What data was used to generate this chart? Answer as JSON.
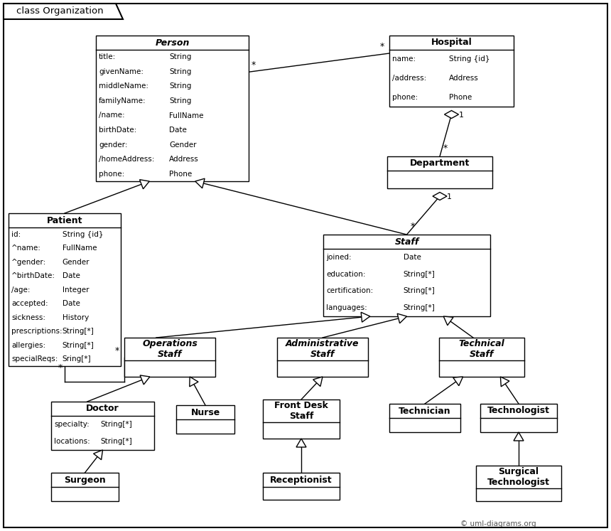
{
  "title": "class Organization",
  "bg_color": "#ffffff",
  "positions": {
    "Person": [
      135,
      50,
      215,
      205
    ],
    "Hospital": [
      548,
      50,
      175,
      100
    ],
    "Department": [
      545,
      220,
      148,
      45
    ],
    "Staff": [
      455,
      330,
      235,
      115
    ],
    "Patient": [
      12,
      300,
      158,
      215
    ],
    "OperationsStaff": [
      175,
      475,
      128,
      55
    ],
    "AdministrativeStaff": [
      390,
      475,
      128,
      55
    ],
    "TechnicalStaff": [
      618,
      475,
      120,
      55
    ],
    "Doctor": [
      72,
      565,
      145,
      68
    ],
    "Nurse": [
      248,
      570,
      82,
      40
    ],
    "FrontDeskStaff": [
      370,
      562,
      108,
      55
    ],
    "Technician": [
      548,
      568,
      100,
      40
    ],
    "Technologist": [
      676,
      568,
      108,
      40
    ],
    "Surgeon": [
      72,
      665,
      95,
      40
    ],
    "Receptionist": [
      370,
      665,
      108,
      38
    ],
    "SurgicalTechnologist": [
      670,
      655,
      120,
      50
    ]
  },
  "attrs_data": {
    "Person": [
      [
        "title:",
        "String"
      ],
      [
        "givenName:",
        "String"
      ],
      [
        "middleName:",
        "String"
      ],
      [
        "familyName:",
        "String"
      ],
      [
        "/name:",
        "FullName"
      ],
      [
        "birthDate:",
        "Date"
      ],
      [
        "gender:",
        "Gender"
      ],
      [
        "/homeAddress:",
        "Address"
      ],
      [
        "phone:",
        "Phone"
      ]
    ],
    "Hospital": [
      [
        "name:",
        "String {id}"
      ],
      [
        "/address:",
        "Address"
      ],
      [
        "phone:",
        "Phone"
      ]
    ],
    "Department": [],
    "Staff": [
      [
        "joined:",
        "Date"
      ],
      [
        "education:",
        "String[*]"
      ],
      [
        "certification:",
        "String[*]"
      ],
      [
        "languages:",
        "String[*]"
      ]
    ],
    "Patient": [
      [
        "id:",
        "String {id}"
      ],
      [
        "^name:",
        "FullName"
      ],
      [
        "^gender:",
        "Gender"
      ],
      [
        "^birthDate:",
        "Date"
      ],
      [
        "/age:",
        "Integer"
      ],
      [
        "accepted:",
        "Date"
      ],
      [
        "sickness:",
        "History"
      ],
      [
        "prescriptions:",
        "String[*]"
      ],
      [
        "allergies:",
        "String[*]"
      ],
      [
        "specialReqs:",
        "Sring[*]"
      ]
    ],
    "OperationsStaff": [],
    "AdministrativeStaff": [],
    "TechnicalStaff": [],
    "Doctor": [
      [
        "specialty:",
        "String[*]"
      ],
      [
        "locations:",
        "String[*]"
      ]
    ],
    "Nurse": [],
    "FrontDeskStaff": [],
    "Technician": [],
    "Technologist": [],
    "Surgeon": [],
    "Receptionist": [],
    "SurgicalTechnologist": []
  },
  "names_display": {
    "Person": "Person",
    "Hospital": "Hospital",
    "Department": "Department",
    "Staff": "Staff",
    "Patient": "Patient",
    "OperationsStaff": "Operations\nStaff",
    "AdministrativeStaff": "Administrative\nStaff",
    "TechnicalStaff": "Technical\nStaff",
    "Doctor": "Doctor",
    "Nurse": "Nurse",
    "FrontDeskStaff": "Front Desk\nStaff",
    "Technician": "Technician",
    "Technologist": "Technologist",
    "Surgeon": "Surgeon",
    "Receptionist": "Receptionist",
    "SurgicalTechnologist": "Surgical\nTechnologist"
  },
  "italic_names": {
    "Person": true,
    "Hospital": false,
    "Department": false,
    "Staff": true,
    "Patient": false,
    "OperationsStaff": true,
    "AdministrativeStaff": true,
    "TechnicalStaff": true,
    "Doctor": false,
    "Nurse": false,
    "FrontDeskStaff": false,
    "Technician": false,
    "Technologist": false,
    "Surgeon": false,
    "Receptionist": false,
    "SurgicalTechnologist": false
  },
  "font_size": 7.5,
  "header_font_size": 9,
  "line_color": "#000000",
  "fill_color": "#ffffff"
}
